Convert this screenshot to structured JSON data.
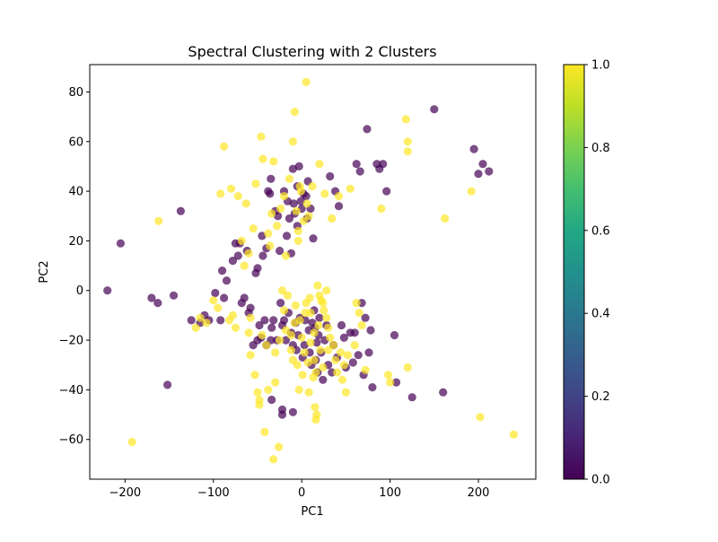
{
  "chart_data": {
    "type": "scatter",
    "title": "Spectral Clustering with 2 Clusters",
    "xlabel": "PC1",
    "ylabel": "PC2",
    "xlim": [
      -240,
      265
    ],
    "ylim": [
      -76,
      91
    ],
    "xticks": [
      -200,
      -100,
      0,
      100,
      200
    ],
    "yticks": [
      -60,
      -40,
      -20,
      0,
      20,
      40,
      60,
      80
    ],
    "grid": false,
    "legend": "none",
    "colorbar": {
      "colormap": "viridis",
      "range": [
        0.0,
        1.0
      ],
      "ticks": [
        "0.0",
        "0.2",
        "0.4",
        "0.6",
        "0.8",
        "1.0"
      ]
    },
    "series": [
      {
        "cluster": 0,
        "color": "#440154",
        "points": [
          [
            -220,
            0
          ],
          [
            -205,
            19
          ],
          [
            -170,
            -3
          ],
          [
            -163,
            -5
          ],
          [
            -152,
            -38
          ],
          [
            -145,
            -2
          ],
          [
            -137,
            32
          ],
          [
            -125,
            -12
          ],
          [
            -115,
            -13
          ],
          [
            -110,
            -10
          ],
          [
            -105,
            -12
          ],
          [
            -98,
            -1
          ],
          [
            -92,
            -12
          ],
          [
            -90,
            8
          ],
          [
            -88,
            -3
          ],
          [
            -85,
            4
          ],
          [
            -78,
            12
          ],
          [
            -75,
            19
          ],
          [
            -72,
            14
          ],
          [
            -70,
            19
          ],
          [
            -68,
            -5
          ],
          [
            -65,
            -3
          ],
          [
            -62,
            16
          ],
          [
            -60,
            -9
          ],
          [
            -58,
            -7
          ],
          [
            -55,
            -22
          ],
          [
            -52,
            7
          ],
          [
            -50,
            9
          ],
          [
            -48,
            -14
          ],
          [
            -46,
            -19
          ],
          [
            -45,
            22
          ],
          [
            -44,
            14
          ],
          [
            -42,
            -12
          ],
          [
            -40,
            17
          ],
          [
            -38,
            40
          ],
          [
            -36,
            39
          ],
          [
            -35,
            45
          ],
          [
            -34,
            -15
          ],
          [
            -32,
            -12
          ],
          [
            -30,
            32
          ],
          [
            -28,
            -20
          ],
          [
            -27,
            30
          ],
          [
            -25,
            16
          ],
          [
            -24,
            -5
          ],
          [
            -22,
            -14
          ],
          [
            -20,
            40
          ],
          [
            -20,
            -12
          ],
          [
            -18,
            -20
          ],
          [
            -17,
            22
          ],
          [
            -16,
            36
          ],
          [
            -15,
            -9
          ],
          [
            -14,
            29
          ],
          [
            -12,
            15
          ],
          [
            -12,
            -17
          ],
          [
            -10,
            49
          ],
          [
            -10,
            -22
          ],
          [
            -9,
            35
          ],
          [
            -8,
            31
          ],
          [
            -7,
            -13
          ],
          [
            -6,
            -24
          ],
          [
            -5,
            26
          ],
          [
            -5,
            42
          ],
          [
            -4,
            -18
          ],
          [
            -3,
            50
          ],
          [
            -2,
            -11
          ],
          [
            -1,
            36
          ],
          [
            0,
            33
          ],
          [
            1,
            -27
          ],
          [
            2,
            39
          ],
          [
            3,
            -22
          ],
          [
            4,
            -12
          ],
          [
            5,
            38
          ],
          [
            6,
            29
          ],
          [
            7,
            44
          ],
          [
            8,
            -16
          ],
          [
            9,
            -25
          ],
          [
            10,
            33
          ],
          [
            11,
            -30
          ],
          [
            12,
            -13
          ],
          [
            13,
            21
          ],
          [
            14,
            -8
          ],
          [
            15,
            -15
          ],
          [
            16,
            -28
          ],
          [
            17,
            -21
          ],
          [
            18,
            -33
          ],
          [
            19,
            -18
          ],
          [
            20,
            -11
          ],
          [
            22,
            -25
          ],
          [
            24,
            -36
          ],
          [
            26,
            -20
          ],
          [
            28,
            -14
          ],
          [
            30,
            -30
          ],
          [
            32,
            46
          ],
          [
            34,
            -33
          ],
          [
            36,
            -22
          ],
          [
            38,
            40
          ],
          [
            40,
            -27
          ],
          [
            42,
            34
          ],
          [
            45,
            -14
          ],
          [
            48,
            -19
          ],
          [
            50,
            -31
          ],
          [
            55,
            -17
          ],
          [
            58,
            -29
          ],
          [
            62,
            51
          ],
          [
            64,
            -26
          ],
          [
            66,
            48
          ],
          [
            70,
            -34
          ],
          [
            72,
            -11
          ],
          [
            74,
            65
          ],
          [
            76,
            -25
          ],
          [
            78,
            -16
          ],
          [
            80,
            -39
          ],
          [
            85,
            51
          ],
          [
            88,
            49
          ],
          [
            92,
            51
          ],
          [
            96,
            40
          ],
          [
            105,
            -18
          ],
          [
            107,
            -37
          ],
          [
            125,
            -43
          ],
          [
            150,
            73
          ],
          [
            160,
            -41
          ],
          [
            195,
            57
          ],
          [
            200,
            47
          ],
          [
            205,
            51
          ],
          [
            212,
            48
          ],
          [
            -50,
            -20
          ],
          [
            -40,
            -22
          ],
          [
            -35,
            -20
          ],
          [
            -22,
            -48
          ],
          [
            -22,
            -50
          ],
          [
            -10,
            -49
          ],
          [
            -34,
            -44
          ],
          [
            68,
            -5
          ],
          [
            60,
            -17
          ]
        ]
      },
      {
        "cluster": 1,
        "color": "#fde725",
        "points": [
          [
            -192,
            -61
          ],
          [
            -162,
            28
          ],
          [
            -120,
            -15
          ],
          [
            -115,
            -11
          ],
          [
            -108,
            -13
          ],
          [
            -100,
            -4
          ],
          [
            -95,
            -7
          ],
          [
            -92,
            39
          ],
          [
            -88,
            58
          ],
          [
            -80,
            41
          ],
          [
            -78,
            -10
          ],
          [
            -75,
            -15
          ],
          [
            -72,
            38
          ],
          [
            -68,
            20
          ],
          [
            -65,
            10
          ],
          [
            -63,
            35
          ],
          [
            -60,
            15
          ],
          [
            -58,
            -11
          ],
          [
            -55,
            25
          ],
          [
            -52,
            43
          ],
          [
            -50,
            -41
          ],
          [
            -48,
            -44
          ],
          [
            -46,
            62
          ],
          [
            -45,
            -18
          ],
          [
            -44,
            53
          ],
          [
            -42,
            -57
          ],
          [
            -40,
            -22
          ],
          [
            -38,
            23
          ],
          [
            -36,
            18
          ],
          [
            -34,
            31
          ],
          [
            -32,
            52
          ],
          [
            -32,
            -68
          ],
          [
            -30,
            -37
          ],
          [
            -28,
            26
          ],
          [
            -26,
            -63
          ],
          [
            -25,
            -20
          ],
          [
            -24,
            33
          ],
          [
            -22,
            0
          ],
          [
            -20,
            38
          ],
          [
            -18,
            -16
          ],
          [
            -16,
            -2
          ],
          [
            -14,
            45
          ],
          [
            -12,
            -24
          ],
          [
            -10,
            60
          ],
          [
            -10,
            -28
          ],
          [
            -8,
            72
          ],
          [
            -7,
            -6
          ],
          [
            -6,
            32
          ],
          [
            -5,
            -30
          ],
          [
            -4,
            24
          ],
          [
            -3,
            -40
          ],
          [
            -2,
            -12
          ],
          [
            -1,
            40
          ],
          [
            0,
            -19
          ],
          [
            1,
            -34
          ],
          [
            2,
            28
          ],
          [
            3,
            -25
          ],
          [
            4,
            -9
          ],
          [
            5,
            84
          ],
          [
            6,
            35
          ],
          [
            7,
            -29
          ],
          [
            8,
            -41
          ],
          [
            9,
            -3
          ],
          [
            10,
            -21
          ],
          [
            12,
            42
          ],
          [
            13,
            -35
          ],
          [
            14,
            -17
          ],
          [
            15,
            -47
          ],
          [
            16,
            -52
          ],
          [
            17,
            -50
          ],
          [
            18,
            2
          ],
          [
            19,
            -14
          ],
          [
            20,
            51
          ],
          [
            21,
            -24
          ],
          [
            22,
            -4
          ],
          [
            24,
            -31
          ],
          [
            25,
            -8
          ],
          [
            26,
            39
          ],
          [
            28,
            -11
          ],
          [
            30,
            -15
          ],
          [
            32,
            -19
          ],
          [
            34,
            29
          ],
          [
            36,
            -22
          ],
          [
            38,
            -28
          ],
          [
            40,
            -33
          ],
          [
            42,
            38
          ],
          [
            44,
            -25
          ],
          [
            46,
            -36
          ],
          [
            48,
            -30
          ],
          [
            50,
            -41
          ],
          [
            52,
            -26
          ],
          [
            55,
            41
          ],
          [
            60,
            -22
          ],
          [
            62,
            -5
          ],
          [
            65,
            -9
          ],
          [
            68,
            -14
          ],
          [
            72,
            -32
          ],
          [
            90,
            33
          ],
          [
            98,
            -34
          ],
          [
            100,
            -37
          ],
          [
            118,
            69
          ],
          [
            120,
            60
          ],
          [
            120,
            56
          ],
          [
            120,
            -31
          ],
          [
            162,
            29
          ],
          [
            192,
            40
          ],
          [
            202,
            -51
          ],
          [
            240,
            -58
          ],
          [
            -82,
            -12
          ],
          [
            -60,
            -17
          ],
          [
            -58,
            -26
          ],
          [
            -53,
            -34
          ],
          [
            -48,
            -46
          ],
          [
            -38,
            -40
          ],
          [
            -30,
            -25
          ],
          [
            -20,
            -8
          ],
          [
            -12,
            -18
          ],
          [
            -8,
            -13
          ],
          [
            5,
            -5
          ],
          [
            10,
            -9
          ],
          [
            20,
            -2
          ],
          [
            24,
            -5
          ],
          [
            28,
            0
          ],
          [
            14,
            -28
          ],
          [
            16,
            -33
          ],
          [
            30,
            -24
          ],
          [
            -18,
            14
          ],
          [
            -4,
            20
          ],
          [
            -2,
            42
          ],
          [
            8,
            30
          ]
        ]
      }
    ]
  }
}
